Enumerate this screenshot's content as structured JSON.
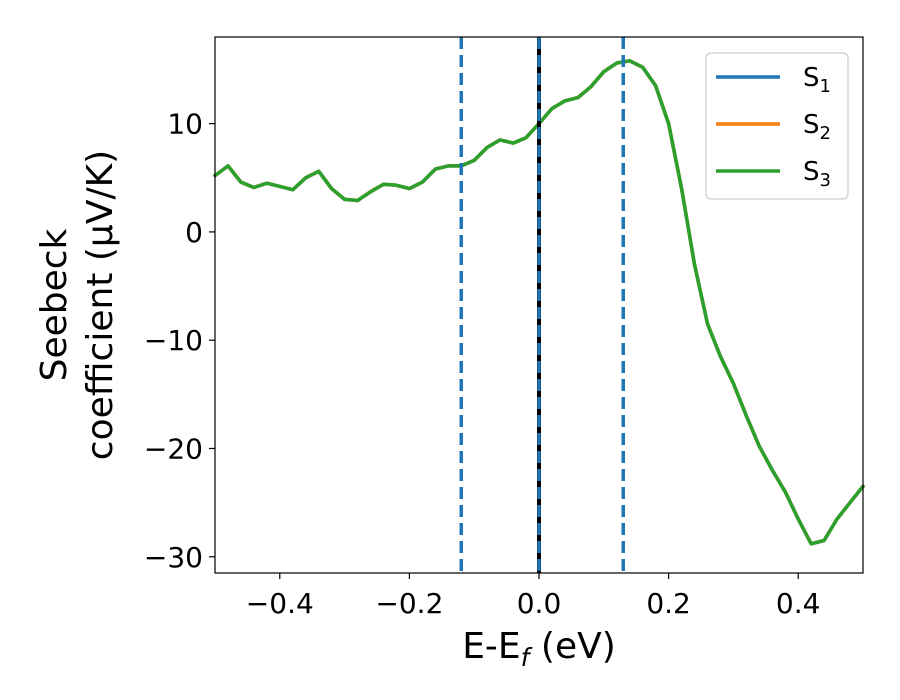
{
  "chart_data": {
    "type": "line",
    "xlabel": "E-E",
    "xlabel_sub": "f",
    "xlabel_unit": " (eV)",
    "ylabel_line1": "Seebeck",
    "ylabel_line2": "coefficient  (μV/K)",
    "xlim": [
      -0.5,
      0.5
    ],
    "ylim": [
      -31.5,
      18
    ],
    "x_ticks": [
      -0.4,
      -0.2,
      0.0,
      0.2,
      0.4
    ],
    "x_tick_labels": [
      "−0.4",
      "−0.2",
      "0.0",
      "0.2",
      "0.4"
    ],
    "y_ticks": [
      -30,
      -20,
      -10,
      0,
      10
    ],
    "y_tick_labels": [
      "−30",
      "−20",
      "−10",
      "0",
      "10"
    ],
    "grid": false,
    "legend_position": "top-right",
    "vertical_lines": [
      {
        "x": -0.12,
        "style": "dashed",
        "color": "#1f77b4"
      },
      {
        "x": 0.0,
        "style": "solid",
        "color": "#000000"
      },
      {
        "x": 0.0,
        "style": "dashed",
        "color": "#1f77b4"
      },
      {
        "x": 0.13,
        "style": "dashed",
        "color": "#1f77b4"
      }
    ],
    "x": [
      -0.5,
      -0.48,
      -0.46,
      -0.44,
      -0.42,
      -0.4,
      -0.38,
      -0.36,
      -0.34,
      -0.32,
      -0.3,
      -0.28,
      -0.26,
      -0.24,
      -0.22,
      -0.2,
      -0.18,
      -0.16,
      -0.14,
      -0.12,
      -0.1,
      -0.08,
      -0.06,
      -0.04,
      -0.02,
      0.0,
      0.02,
      0.04,
      0.06,
      0.08,
      0.1,
      0.12,
      0.14,
      0.16,
      0.18,
      0.2,
      0.22,
      0.24,
      0.26,
      0.28,
      0.3,
      0.32,
      0.34,
      0.36,
      0.38,
      0.4,
      0.42,
      0.44,
      0.46,
      0.48,
      0.5
    ],
    "series": [
      {
        "name": "S",
        "sub": "1",
        "color": "#1f77b4",
        "values": [
          5.2,
          6.1,
          4.6,
          4.1,
          4.5,
          4.2,
          3.9,
          5.0,
          5.6,
          4.0,
          3.0,
          2.9,
          3.7,
          4.4,
          4.3,
          4.0,
          4.6,
          5.8,
          6.1,
          6.1,
          6.6,
          7.8,
          8.5,
          8.2,
          8.7,
          10.0,
          11.4,
          12.1,
          12.4,
          13.4,
          14.8,
          15.6,
          15.8,
          15.2,
          13.5,
          10.0,
          4.0,
          -3.0,
          -8.5,
          -11.5,
          -14.0,
          -17.0,
          -19.8,
          -22.0,
          -24.0,
          -26.5,
          -28.8,
          -28.5,
          -26.5,
          -25.0,
          -23.5
        ]
      },
      {
        "name": "S",
        "sub": "2",
        "color": "#ff7f0e",
        "values": [
          5.2,
          6.1,
          4.6,
          4.1,
          4.5,
          4.2,
          3.9,
          5.0,
          5.6,
          4.0,
          3.0,
          2.9,
          3.7,
          4.4,
          4.3,
          4.0,
          4.6,
          5.8,
          6.1,
          6.1,
          6.6,
          7.8,
          8.5,
          8.2,
          8.7,
          10.0,
          11.4,
          12.1,
          12.4,
          13.4,
          14.8,
          15.6,
          15.8,
          15.2,
          13.5,
          10.0,
          4.0,
          -3.0,
          -8.5,
          -11.5,
          -14.0,
          -17.0,
          -19.8,
          -22.0,
          -24.0,
          -26.5,
          -28.8,
          -28.5,
          -26.5,
          -25.0,
          -23.5
        ]
      },
      {
        "name": "S",
        "sub": "3",
        "color": "#2ca02c",
        "values": [
          5.2,
          6.1,
          4.6,
          4.1,
          4.5,
          4.2,
          3.9,
          5.0,
          5.6,
          4.0,
          3.0,
          2.9,
          3.7,
          4.4,
          4.3,
          4.0,
          4.6,
          5.8,
          6.1,
          6.1,
          6.6,
          7.8,
          8.5,
          8.2,
          8.7,
          10.0,
          11.4,
          12.1,
          12.4,
          13.4,
          14.8,
          15.6,
          15.8,
          15.2,
          13.5,
          10.0,
          4.0,
          -3.0,
          -8.5,
          -11.5,
          -14.0,
          -17.0,
          -19.8,
          -22.0,
          -24.0,
          -26.5,
          -28.8,
          -28.5,
          -26.5,
          -25.0,
          -23.5
        ]
      }
    ]
  }
}
